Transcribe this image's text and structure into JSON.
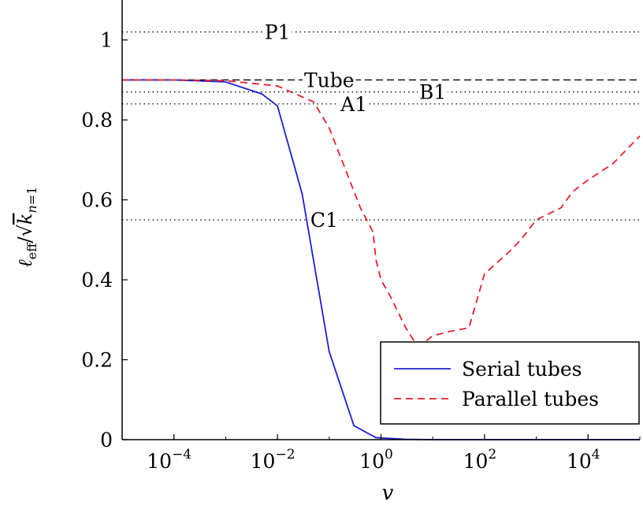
{
  "chart_data": {
    "type": "line",
    "x_scale": "log",
    "xlim": [
      1e-05,
      100000
    ],
    "ylim": [
      0,
      1.1
    ],
    "xlabel": "v",
    "ylabel": "ℓeff/√kn=1",
    "grid": false,
    "legend_position": "bottom-right",
    "x_ticks": [
      {
        "value": 0.0001,
        "base": "10",
        "exp": "−4"
      },
      {
        "value": 0.01,
        "base": "10",
        "exp": "−2"
      },
      {
        "value": 1,
        "base": "10",
        "exp": "0"
      },
      {
        "value": 100,
        "base": "10",
        "exp": "2"
      },
      {
        "value": 10000,
        "base": "10",
        "exp": "4"
      }
    ],
    "y_ticks": [
      {
        "value": 0,
        "label": "0"
      },
      {
        "value": 0.2,
        "label": "0.2"
      },
      {
        "value": 0.4,
        "label": "0.4"
      },
      {
        "value": 0.6,
        "label": "0.6"
      },
      {
        "value": 0.8,
        "label": "0.8"
      },
      {
        "value": 1,
        "label": "1"
      }
    ],
    "reference_lines": [
      {
        "label": "P1",
        "y": 1.02,
        "style": "dotted",
        "label_x": 0.01
      },
      {
        "label": "Tube",
        "y": 0.9,
        "style": "dashed",
        "label_x": 0.1
      },
      {
        "label": "B1",
        "y": 0.87,
        "style": "dotted",
        "label_x": 10
      },
      {
        "label": "A1",
        "y": 0.84,
        "style": "dotted",
        "label_x": 0.3
      },
      {
        "label": "C1",
        "y": 0.55,
        "style": "dotted",
        "label_x": 0.08
      }
    ],
    "series": [
      {
        "name": "Serial tubes",
        "color": "#1f1fd6",
        "dash": "solid",
        "points": [
          [
            1e-05,
            0.9
          ],
          [
            0.0001,
            0.9
          ],
          [
            0.001,
            0.895
          ],
          [
            0.005,
            0.865
          ],
          [
            0.01,
            0.835
          ],
          [
            0.03,
            0.615
          ],
          [
            0.1,
            0.22
          ],
          [
            0.3,
            0.035
          ],
          [
            0.8,
            0.005
          ],
          [
            3,
            0.001
          ],
          [
            10,
            0
          ],
          [
            100000,
            0
          ]
        ]
      },
      {
        "name": "Parallel tubes",
        "color": "#e8202a",
        "dash": "dashed",
        "points": [
          [
            1e-05,
            0.9
          ],
          [
            0.0001,
            0.9
          ],
          [
            0.001,
            0.898
          ],
          [
            0.01,
            0.885
          ],
          [
            0.05,
            0.845
          ],
          [
            0.1,
            0.78
          ],
          [
            0.2,
            0.68
          ],
          [
            0.4,
            0.58
          ],
          [
            0.7,
            0.52
          ],
          [
            0.8,
            0.45
          ],
          [
            1,
            0.4
          ],
          [
            1.5,
            0.36
          ],
          [
            3,
            0.28
          ],
          [
            5,
            0.235
          ],
          [
            8,
            0.25
          ],
          [
            10,
            0.26
          ],
          [
            20,
            0.27
          ],
          [
            50,
            0.28
          ],
          [
            100,
            0.415
          ],
          [
            300,
            0.47
          ],
          [
            500,
            0.5
          ],
          [
            1000,
            0.55
          ],
          [
            3000,
            0.58
          ],
          [
            5000,
            0.62
          ],
          [
            10000,
            0.65
          ],
          [
            30000,
            0.69
          ],
          [
            100000,
            0.76
          ]
        ]
      }
    ]
  }
}
